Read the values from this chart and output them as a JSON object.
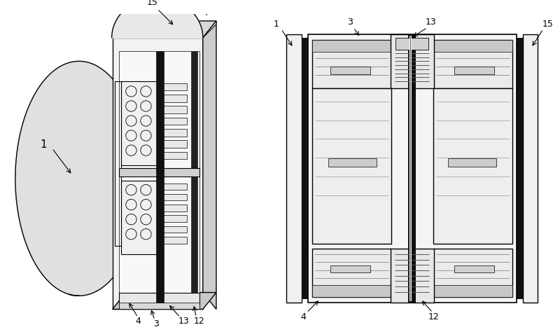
{
  "bg_color": "#ffffff",
  "line_color": "#000000",
  "fig_width": 8.0,
  "fig_height": 4.74
}
